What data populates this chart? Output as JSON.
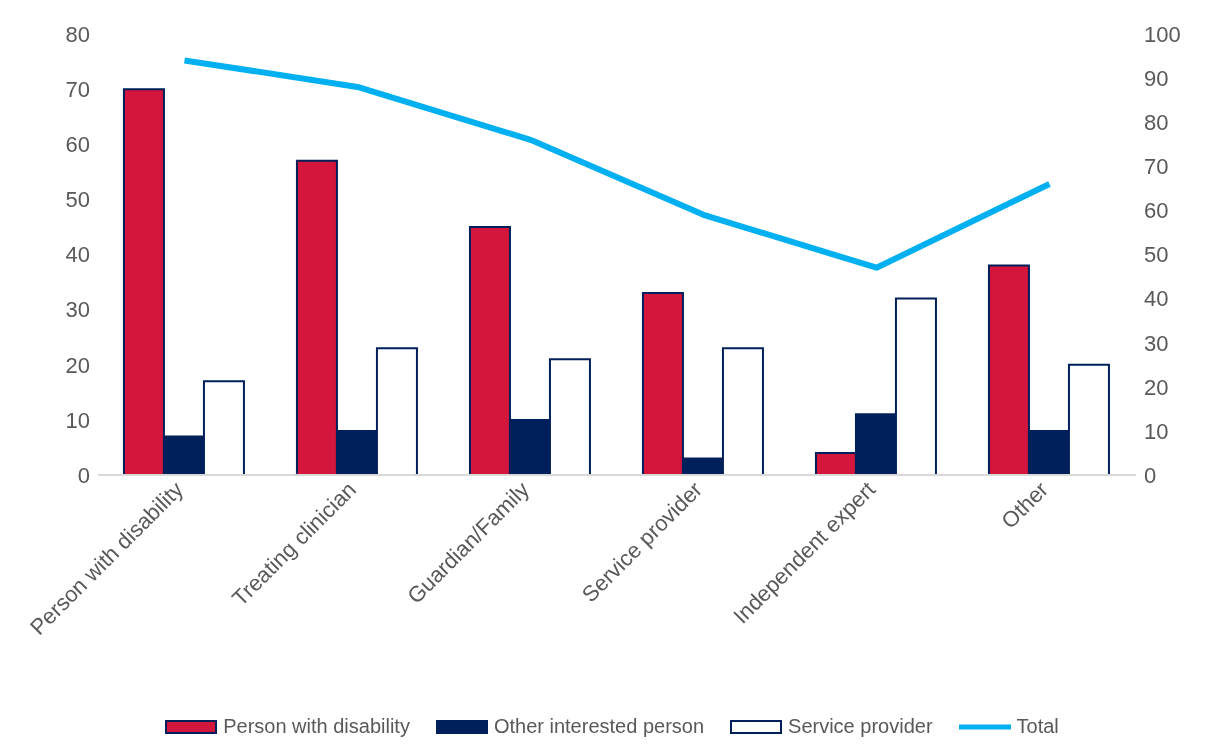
{
  "chart_data": {
    "type": "bar",
    "categories": [
      "Person with disability",
      "Treating clinician",
      "Guardian/Family",
      "Service provider",
      "Independent expert",
      "Other"
    ],
    "series": [
      {
        "name": "Person with disability",
        "color": "#d4163c",
        "values": [
          70,
          57,
          45,
          33,
          4,
          38
        ]
      },
      {
        "name": "Other interested person",
        "color": "#00205b",
        "values": [
          7,
          8,
          10,
          3,
          11,
          8
        ]
      },
      {
        "name": "Service provider",
        "color": "#ffffff",
        "values": [
          17,
          23,
          21,
          23,
          32,
          20
        ]
      },
      {
        "name": "Total",
        "color": "#00b0f0",
        "type": "line",
        "axis": "y2",
        "values": [
          94,
          88,
          76,
          59,
          47,
          66
        ]
      }
    ],
    "ylim": [
      0,
      80
    ],
    "yticks": [
      0,
      10,
      20,
      30,
      40,
      50,
      60,
      70,
      80
    ],
    "y2lim": [
      0,
      100
    ],
    "y2ticks": [
      0,
      10,
      20,
      30,
      40,
      50,
      60,
      70,
      80,
      90,
      100
    ],
    "grid": false,
    "legend": "bottom",
    "marker": "none"
  }
}
